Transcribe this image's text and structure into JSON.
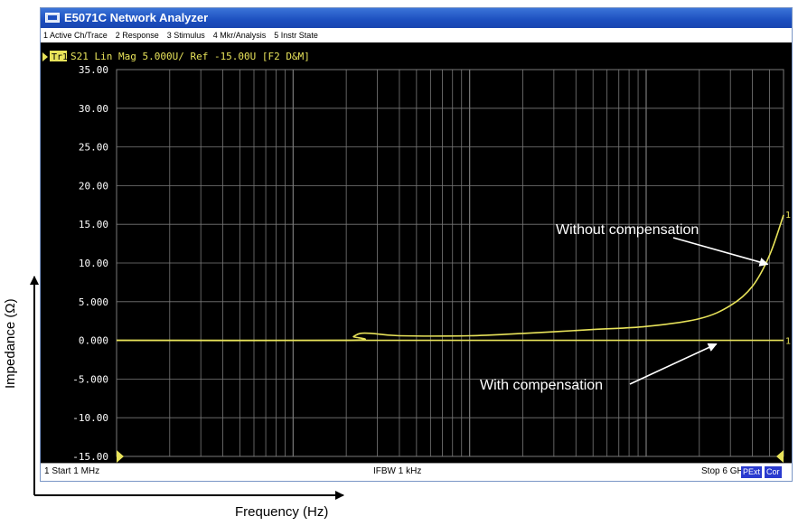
{
  "window": {
    "title": "E5071C Network Analyzer",
    "menu": [
      "1 Active Ch/Trace",
      "2 Response",
      "3 Stimulus",
      "4 Mkr/Analysis",
      "5 Instr State"
    ],
    "trace_header": {
      "badge": "Tr1",
      "text": "S21 Lin Mag 5.000U/ Ref -15.00U [F2 D&M]"
    },
    "status": {
      "start": "1  Start 1 MHz",
      "ifbw": "IFBW 1 kHz",
      "stop": "Stop 6 GHz",
      "pext": "PExt",
      "cor": "Cor"
    }
  },
  "outer_labels": {
    "ylabel": "Impedance (Ω)",
    "xlabel": "Frequency (Hz)"
  },
  "colors": {
    "trace": "#e8e35a",
    "grid": "#7a7a7a",
    "screen": "#000000",
    "label_text": "#ffffff"
  },
  "chart_data": {
    "type": "line",
    "x_scale": "log",
    "x_range_hz": [
      1000000,
      6000000000
    ],
    "ylim": [
      -15,
      35
    ],
    "y_ticks": [
      "35.00",
      "30.00",
      "25.00",
      "20.00",
      "15.00",
      "10.00",
      "5.000",
      "0.000",
      "-5.000",
      "-10.00",
      "-15.00"
    ],
    "series": [
      {
        "points": [
          [
            1000000,
            0
          ],
          [
            20000000,
            0
          ],
          [
            22000000,
            0.5
          ],
          [
            24000000,
            0.9
          ],
          [
            28000000,
            0.9
          ],
          [
            40000000,
            0.6
          ],
          [
            100000000,
            0.6
          ],
          [
            200000000,
            0.9
          ],
          [
            500000000,
            1.4
          ],
          [
            1000000000,
            1.8
          ],
          [
            2000000000,
            2.8
          ],
          [
            3000000000,
            4.5
          ],
          [
            4000000000,
            7.0
          ],
          [
            5000000000,
            11.0
          ],
          [
            6000000000,
            16.2
          ]
        ],
        "annotation": "Without compensation",
        "marker_label": "1"
      },
      {
        "points": [
          [
            1000000,
            0
          ],
          [
            6000000000,
            0
          ]
        ],
        "annotation": "With compensation",
        "marker_label": "1"
      }
    ]
  }
}
